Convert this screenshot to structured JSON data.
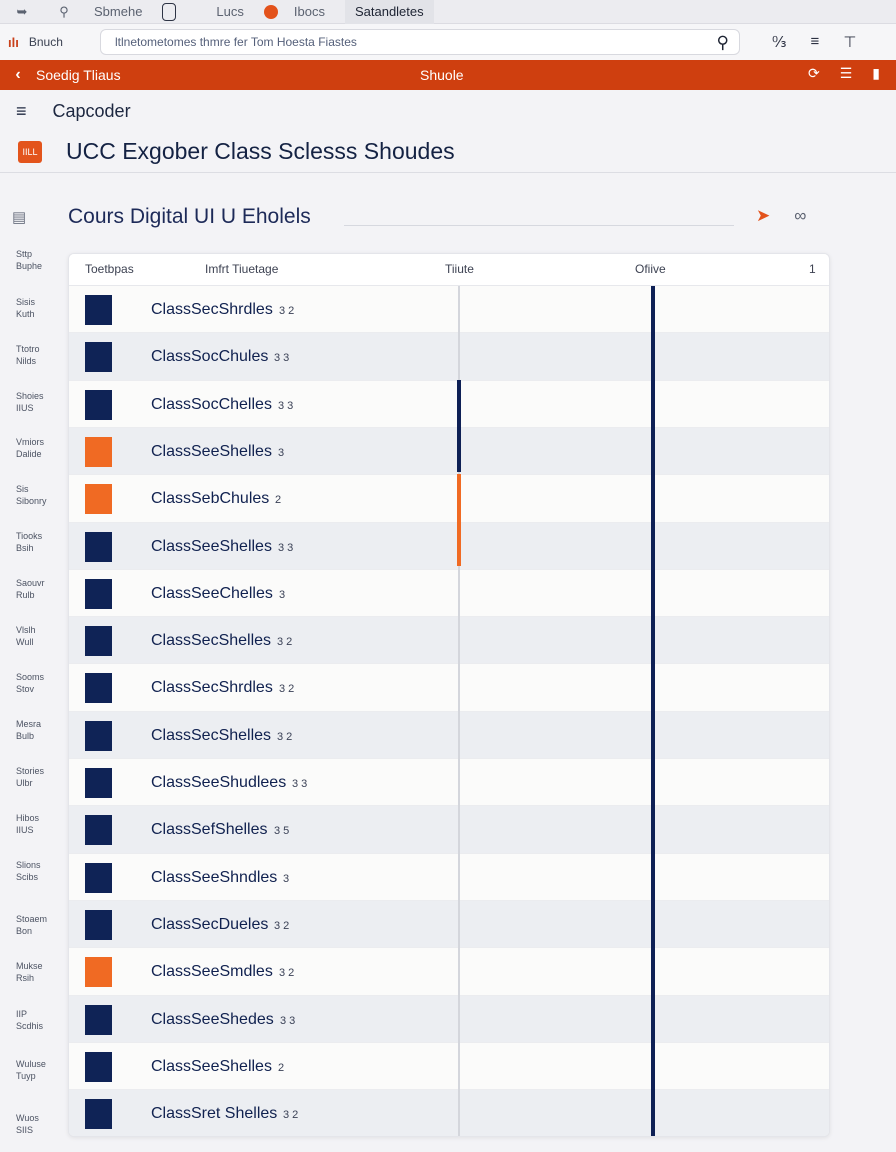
{
  "browser": {
    "tabs": [
      "Sbmehe",
      "Lucs",
      "Ibocs",
      "Satandletes"
    ],
    "brand": {
      "mark": "ılı",
      "label": "Bnuch"
    },
    "url": "ltlnetometomes thmre fer Tom Hoesta Fiastes"
  },
  "appbar": {
    "crumb": "Soedig Tliaus",
    "title": "Shuole"
  },
  "menu": {
    "title": "Capcoder"
  },
  "page": {
    "badge": "IILL",
    "title": "UCC Exgober Class Sclesss Shoudes"
  },
  "section": {
    "title": "Cours Digital UI U Eholels"
  },
  "sidebar": [
    {
      "line1": "Sttp",
      "line2": "Buphe"
    },
    {
      "line1": "Sisis",
      "line2": "Kuth"
    },
    {
      "line1": "Ttotro",
      "line2": "Nilds"
    },
    {
      "line1": "Shoies",
      "line2": "IIUS"
    },
    {
      "line1": "Vmiors",
      "line2": "Dalide"
    },
    {
      "line1": "Sis",
      "line2": "Sibonry"
    },
    {
      "line1": "Tiooks",
      "line2": "Bsih"
    },
    {
      "line1": "Saouvr",
      "line2": "Rulb"
    },
    {
      "line1": "Vlslh",
      "line2": "Wull"
    },
    {
      "line1": "Sooms",
      "line2": "Stov"
    },
    {
      "line1": "Mesra",
      "line2": "Bulb"
    },
    {
      "line1": "Stories",
      "line2": "Ulbr"
    },
    {
      "line1": "Hibos",
      "line2": "IIUS"
    },
    {
      "line1": "Slions",
      "line2": "Scibs"
    },
    {
      "line1": "Stoaem",
      "line2": "Bon"
    },
    {
      "line1": "Mukse",
      "line2": "Rsih"
    },
    {
      "line1": "IIP",
      "line2": "Scdhis"
    },
    {
      "line1": "Wuluse",
      "line2": "Tuyp"
    },
    {
      "line1": "Wuos",
      "line2": "SIIS"
    }
  ],
  "table": {
    "headers": [
      "Toetbpas",
      "Imfrt Tiuetage",
      "Tiiute",
      "Ofiive",
      "1"
    ],
    "rows": [
      {
        "label": "ClassSecShrdles",
        "num": "3 2",
        "icon": "navy"
      },
      {
        "label": "ClassSocChules",
        "num": "3 3",
        "icon": "navy"
      },
      {
        "label": "ClassSocChelles",
        "num": "3 3",
        "icon": "navy"
      },
      {
        "label": "ClassSeeShelles",
        "num": "3",
        "icon": "orange"
      },
      {
        "label": "ClassSebChules",
        "num": "2",
        "icon": "orange"
      },
      {
        "label": "ClassSeeShelles",
        "num": "3 3",
        "icon": "navy"
      },
      {
        "label": "ClassSeeChelles",
        "num": "3",
        "icon": "navy"
      },
      {
        "label": "ClassSecShelles",
        "num": "3 2",
        "icon": "navy"
      },
      {
        "label": "ClassSecShrdles",
        "num": "3 2",
        "icon": "navy"
      },
      {
        "label": "ClassSecShelles",
        "num": "3 2",
        "icon": "navy"
      },
      {
        "label": "ClassSeeShudlees",
        "num": "3 3",
        "icon": "navy"
      },
      {
        "label": "ClassSefShelles",
        "num": "3 5",
        "icon": "navy"
      },
      {
        "label": "ClassSeeShndles",
        "num": "3",
        "icon": "navy"
      },
      {
        "label": "ClassSecDueles",
        "num": "3 2",
        "icon": "navy"
      },
      {
        "label": "ClassSeeSmdles",
        "num": "3 2",
        "icon": "orange"
      },
      {
        "label": "ClassSeeShedes",
        "num": "3 3",
        "icon": "navy"
      },
      {
        "label": "ClassSeeShelles",
        "num": "2",
        "icon": "navy"
      },
      {
        "label": "ClassSret Shelles",
        "num": "3 2",
        "icon": "navy"
      }
    ]
  },
  "colors": {
    "accent": "#cf3f0f",
    "navy": "#0f2356",
    "orange": "#f06a23"
  }
}
